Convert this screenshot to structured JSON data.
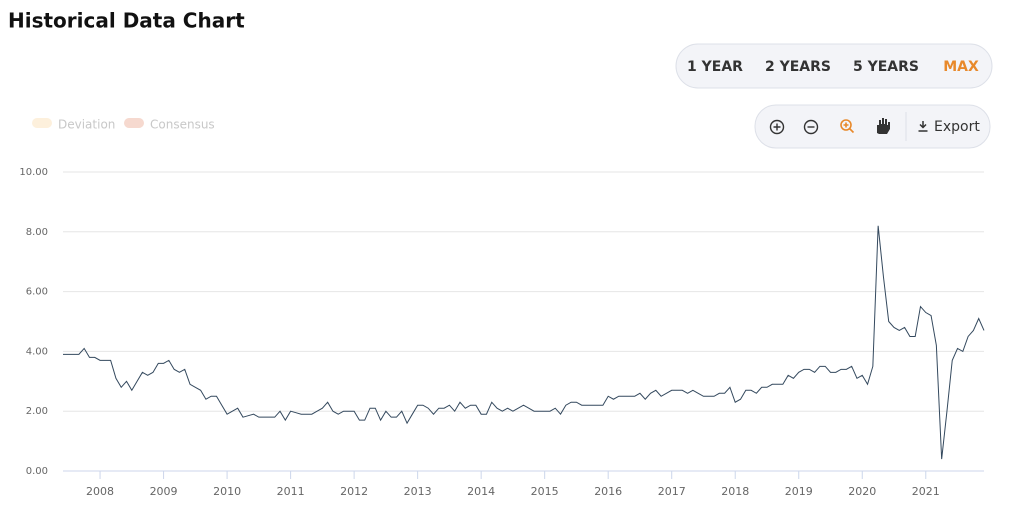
{
  "header": {
    "title": "Historical Data Chart"
  },
  "range_buttons": [
    "1 YEAR",
    "2 YEARS",
    "5 YEARS",
    "MAX"
  ],
  "active_button": 3,
  "toolbar": {
    "export": "Export"
  },
  "chart_data": {
    "type": "line",
    "legend": [
      "Deviation",
      "Consensus"
    ],
    "color": "#34495e",
    "categories": [
      null,
      null,
      null,
      null,
      null,
      null,
      null,
      "2008",
      null,
      null,
      null,
      null,
      null,
      null,
      null,
      null,
      null,
      null,
      null,
      "2009",
      null,
      null,
      null,
      null,
      null,
      null,
      null,
      null,
      null,
      null,
      null,
      "2010",
      null,
      null,
      null,
      null,
      null,
      null,
      null,
      null,
      null,
      null,
      null,
      "2011",
      null,
      null,
      null,
      null,
      null,
      null,
      null,
      null,
      null,
      null,
      null,
      "2012",
      null,
      null,
      null,
      null,
      null,
      null,
      null,
      null,
      null,
      null,
      null,
      "2013",
      null,
      null,
      null,
      null,
      null,
      null,
      null,
      null,
      null,
      null,
      null,
      "2014",
      null,
      null,
      null,
      null,
      null,
      null,
      null,
      null,
      null,
      null,
      null,
      "2015",
      null,
      null,
      null,
      null,
      null,
      null,
      null,
      null,
      null,
      null,
      null,
      "2016",
      null,
      null,
      null,
      null,
      null,
      null,
      null,
      null,
      null,
      null,
      null,
      "2017",
      null,
      null,
      null,
      null,
      null,
      null,
      null,
      null,
      null,
      null,
      null,
      "2018",
      null,
      null,
      null,
      null,
      null,
      null,
      null,
      null,
      null,
      null,
      null,
      "2019",
      null,
      null,
      null,
      null,
      null,
      null,
      null,
      null,
      null,
      null,
      null,
      "2020",
      null,
      null,
      null,
      null,
      null,
      null,
      null,
      null,
      null,
      null,
      null,
      "2021",
      null,
      null,
      null,
      null,
      null,
      null,
      null,
      null,
      null,
      null,
      null
    ],
    "values": [
      3.9,
      3.9,
      3.9,
      3.9,
      4.1,
      3.8,
      3.8,
      3.7,
      3.7,
      3.7,
      3.1,
      2.8,
      3.0,
      2.7,
      3.0,
      3.3,
      3.2,
      3.3,
      3.6,
      3.6,
      3.7,
      3.4,
      3.3,
      3.4,
      2.9,
      2.8,
      2.7,
      2.4,
      2.5,
      2.5,
      2.2,
      1.9,
      2.0,
      2.1,
      1.8,
      1.85,
      1.9,
      1.8,
      1.8,
      1.8,
      1.8,
      2.0,
      1.7,
      2.0,
      1.95,
      1.9,
      1.9,
      1.9,
      2.0,
      2.1,
      2.3,
      2.0,
      1.9,
      2.0,
      2.0,
      2.0,
      1.7,
      1.7,
      2.1,
      2.1,
      1.7,
      2.0,
      1.8,
      1.8,
      2.0,
      1.6,
      1.9,
      2.2,
      2.2,
      2.1,
      1.9,
      2.1,
      2.1,
      2.2,
      2.0,
      2.3,
      2.1,
      2.2,
      2.2,
      1.9,
      1.9,
      2.3,
      2.1,
      2.0,
      2.1,
      2.0,
      2.1,
      2.2,
      2.1,
      2.0,
      2.0,
      2.0,
      2.0,
      2.1,
      1.9,
      2.2,
      2.3,
      2.3,
      2.2,
      2.2,
      2.2,
      2.2,
      2.2,
      2.5,
      2.4,
      2.5,
      2.5,
      2.5,
      2.5,
      2.6,
      2.4,
      2.6,
      2.7,
      2.5,
      2.6,
      2.7,
      2.7,
      2.7,
      2.6,
      2.7,
      2.6,
      2.5,
      2.5,
      2.5,
      2.6,
      2.6,
      2.8,
      2.3,
      2.4,
      2.7,
      2.7,
      2.6,
      2.8,
      2.8,
      2.9,
      2.9,
      2.9,
      3.2,
      3.1,
      3.3,
      3.4,
      3.4,
      3.3,
      3.5,
      3.5,
      3.3,
      3.3,
      3.4,
      3.4,
      3.5,
      3.1,
      3.2,
      2.9,
      3.5,
      8.2,
      6.5,
      5.0,
      4.8,
      4.7,
      4.8,
      4.5,
      4.5,
      5.5,
      5.3,
      5.2,
      4.2,
      0.4,
      2.0,
      3.7,
      4.1,
      4.0,
      4.5,
      4.7,
      5.1,
      4.7
    ],
    "ylim": [
      0,
      10
    ],
    "yticks": [
      {
        "value": 0,
        "label": "0.00"
      },
      {
        "value": 2,
        "label": "2.00"
      },
      {
        "value": 4,
        "label": "4.00"
      },
      {
        "value": 6,
        "label": "6.00"
      },
      {
        "value": 8,
        "label": "8.00"
      },
      {
        "value": 10,
        "label": "10.00"
      }
    ],
    "grid": true
  }
}
